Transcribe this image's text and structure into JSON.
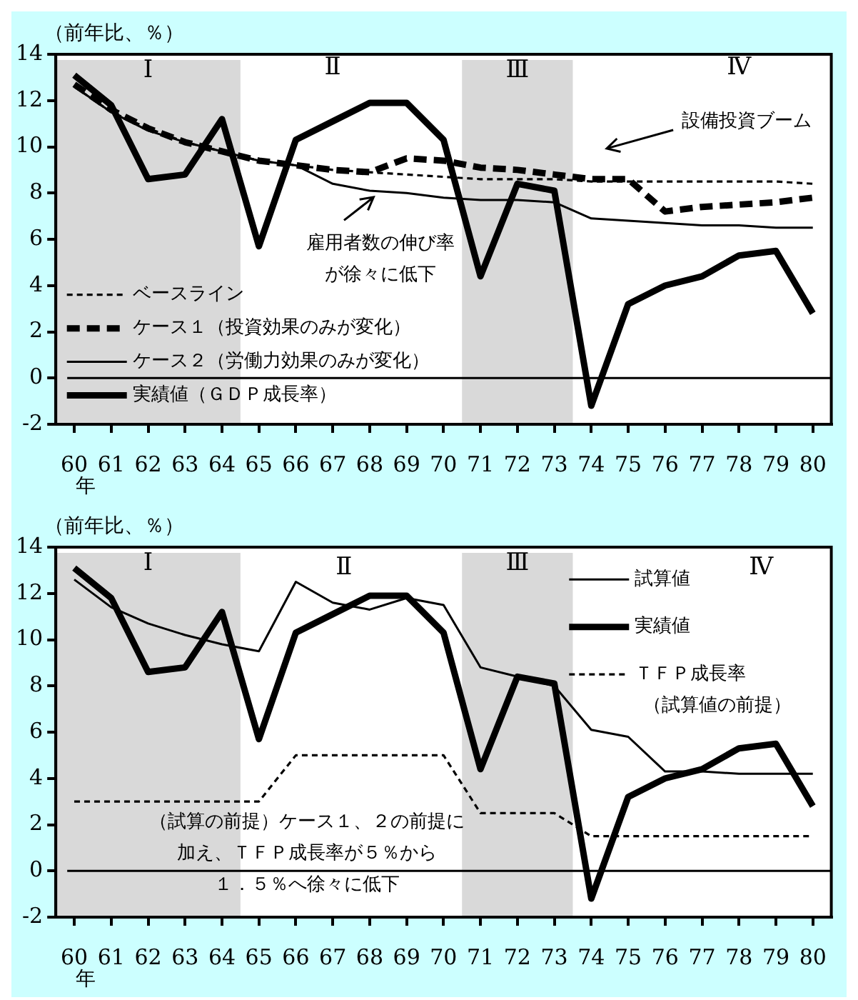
{
  "chart_data": [
    {
      "type": "line",
      "ylabel": "（前年比、％）",
      "xlabel": "年",
      "categories": [
        "60",
        "61",
        "62",
        "63",
        "64",
        "65",
        "66",
        "67",
        "68",
        "69",
        "70",
        "71",
        "72",
        "73",
        "74",
        "75",
        "76",
        "77",
        "78",
        "79",
        "80"
      ],
      "series": [
        {
          "name": "ベースライン",
          "color": "#000000",
          "line_style": "dotted",
          "values": [
            12.6,
            11.5,
            10.8,
            10.2,
            9.8,
            9.4,
            9.2,
            9.0,
            8.9,
            8.8,
            8.7,
            8.6,
            8.6,
            8.6,
            8.5,
            8.5,
            8.5,
            8.5,
            8.5,
            8.5,
            8.4
          ]
        },
        {
          "name": "ケース１（投資効果のみが変化）",
          "color": "#000000",
          "line_style": "dashed",
          "values": [
            12.7,
            11.6,
            10.8,
            10.2,
            9.8,
            9.4,
            9.2,
            9.0,
            8.9,
            9.5,
            9.4,
            9.1,
            9.0,
            8.8,
            8.6,
            8.6,
            7.2,
            7.4,
            7.5,
            7.6,
            7.8
          ]
        },
        {
          "name": "ケース２（労働力効果のみが変化）",
          "color": "#000000",
          "line_style": "solid",
          "values": [
            12.6,
            11.5,
            10.7,
            10.2,
            9.8,
            9.4,
            9.2,
            8.4,
            8.1,
            8.0,
            7.8,
            7.7,
            7.7,
            7.6,
            6.9,
            6.8,
            6.7,
            6.6,
            6.6,
            6.5,
            6.5
          ]
        },
        {
          "name": "実績値（ＧＤＰ成長率）",
          "color": "#000000",
          "line_style": "solid",
          "values": [
            13.1,
            11.8,
            8.6,
            8.8,
            11.2,
            5.7,
            10.3,
            11.1,
            11.9,
            11.9,
            10.3,
            4.4,
            8.4,
            8.1,
            -1.2,
            3.2,
            4.0,
            4.4,
            5.3,
            5.5,
            2.8
          ]
        }
      ],
      "ylim": [
        -2,
        14
      ],
      "yticks": [
        -2,
        0,
        2,
        4,
        6,
        8,
        10,
        12,
        14
      ],
      "grid": false,
      "legend": "bottom left",
      "marker": "none",
      "ref_lines": [
        {
          "axis": "y",
          "value": 0,
          "color": "#000000"
        }
      ],
      "bands": [
        {
          "axis": "x",
          "from": "60",
          "to": "64",
          "label": "Ⅰ",
          "color": "#d9d9d9"
        },
        {
          "axis": "x",
          "from": "71",
          "to": "73",
          "label": "Ⅲ",
          "color": "#d9d9d9"
        }
      ],
      "annotations": [
        "Ⅱ",
        "Ⅳ",
        "設備投資ブーム",
        "雇用者数の伸び率が徐々に低下"
      ]
    },
    {
      "type": "line",
      "ylabel": "（前年比、％）",
      "xlabel": "年",
      "categories": [
        "60",
        "61",
        "62",
        "63",
        "64",
        "65",
        "66",
        "67",
        "68",
        "69",
        "70",
        "71",
        "72",
        "73",
        "74",
        "75",
        "76",
        "77",
        "78",
        "79",
        "80"
      ],
      "series": [
        {
          "name": "試算値",
          "color": "#000000",
          "line_style": "solid",
          "values": [
            12.6,
            11.4,
            10.7,
            10.2,
            9.8,
            9.5,
            12.5,
            11.6,
            11.3,
            11.8,
            11.5,
            8.8,
            8.4,
            8.0,
            6.1,
            5.8,
            4.3,
            4.3,
            4.2,
            4.2,
            4.2
          ]
        },
        {
          "name": "実績値",
          "color": "#000000",
          "line_style": "solid",
          "values": [
            13.1,
            11.8,
            8.6,
            8.8,
            11.2,
            5.7,
            10.3,
            11.1,
            11.9,
            11.9,
            10.3,
            4.4,
            8.4,
            8.1,
            -1.2,
            3.2,
            4.0,
            4.4,
            5.3,
            5.5,
            2.8
          ]
        },
        {
          "name": "ＴＦＰ成長率（試算値の前提）",
          "color": "#000000",
          "line_style": "dotted",
          "values": [
            3.0,
            3.0,
            3.0,
            3.0,
            3.0,
            3.0,
            5.0,
            5.0,
            5.0,
            5.0,
            5.0,
            2.5,
            2.5,
            2.5,
            1.5,
            1.5,
            1.5,
            1.5,
            1.5,
            1.5,
            1.5
          ]
        }
      ],
      "ylim": [
        -2,
        14
      ],
      "yticks": [
        -2,
        0,
        2,
        4,
        6,
        8,
        10,
        12,
        14
      ],
      "grid": false,
      "legend": "top right",
      "marker": "none",
      "ref_lines": [
        {
          "axis": "y",
          "value": 0,
          "color": "#000000"
        }
      ],
      "bands": [
        {
          "axis": "x",
          "from": "60",
          "to": "64",
          "label": "Ⅰ",
          "color": "#d9d9d9"
        },
        {
          "axis": "x",
          "from": "71",
          "to": "73",
          "label": "Ⅲ",
          "color": "#d9d9d9"
        }
      ],
      "annotations": [
        "Ⅱ",
        "Ⅳ",
        "（試算の前提）ケース１、２の前提に加え、ＴＦＰ成長率が５％から１．５％へ徐々に低下"
      ]
    }
  ]
}
